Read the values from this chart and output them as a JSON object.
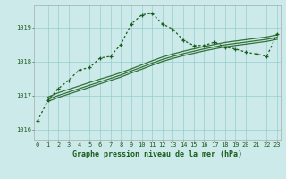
{
  "title": "Graphe pression niveau de la mer (hPa)",
  "background_color": "#cceaea",
  "grid_color": "#99cccc",
  "line_color": "#1a5c1a",
  "xlim": [
    -0.3,
    23.3
  ],
  "ylim": [
    1015.7,
    1019.65
  ],
  "yticks": [
    1016,
    1017,
    1018,
    1019
  ],
  "xticks": [
    0,
    1,
    2,
    3,
    4,
    5,
    6,
    7,
    8,
    9,
    10,
    11,
    12,
    13,
    14,
    15,
    16,
    17,
    18,
    19,
    20,
    21,
    22,
    23
  ],
  "main_line_x": [
    0,
    1,
    2,
    3,
    4,
    5,
    6,
    7,
    8,
    9,
    10,
    11,
    12,
    13,
    14,
    15,
    16,
    17,
    18,
    19,
    20,
    21,
    22,
    23
  ],
  "main_line_y": [
    1016.25,
    1016.85,
    1017.2,
    1017.45,
    1017.75,
    1017.82,
    1018.1,
    1018.15,
    1018.5,
    1019.1,
    1019.37,
    1019.42,
    1019.1,
    1018.95,
    1018.62,
    1018.47,
    1018.47,
    1018.57,
    1018.42,
    1018.37,
    1018.27,
    1018.22,
    1018.15,
    1018.82
  ],
  "line2_x": [
    1,
    2,
    3,
    4,
    5,
    6,
    7,
    8,
    9,
    10,
    11,
    12,
    13,
    14,
    15,
    16,
    17,
    18,
    19,
    20,
    21,
    22,
    23
  ],
  "line2_y": [
    1016.95,
    1017.08,
    1017.18,
    1017.28,
    1017.38,
    1017.48,
    1017.57,
    1017.67,
    1017.78,
    1017.9,
    1018.02,
    1018.13,
    1018.22,
    1018.3,
    1018.37,
    1018.44,
    1018.5,
    1018.56,
    1018.6,
    1018.64,
    1018.68,
    1018.72,
    1018.78
  ],
  "line3_x": [
    1,
    2,
    3,
    4,
    5,
    6,
    7,
    8,
    9,
    10,
    11,
    12,
    13,
    14,
    15,
    16,
    17,
    18,
    19,
    20,
    21,
    22,
    23
  ],
  "line3_y": [
    1016.88,
    1017.0,
    1017.1,
    1017.2,
    1017.3,
    1017.4,
    1017.5,
    1017.6,
    1017.72,
    1017.83,
    1017.95,
    1018.06,
    1018.15,
    1018.23,
    1018.3,
    1018.37,
    1018.43,
    1018.49,
    1018.53,
    1018.57,
    1018.61,
    1018.65,
    1018.71
  ],
  "line4_x": [
    1,
    2,
    3,
    4,
    5,
    6,
    7,
    8,
    9,
    10,
    11,
    12,
    13,
    14,
    15,
    16,
    17,
    18,
    19,
    20,
    21,
    22,
    23
  ],
  "line4_y": [
    1016.82,
    1016.94,
    1017.04,
    1017.14,
    1017.24,
    1017.34,
    1017.44,
    1017.54,
    1017.66,
    1017.77,
    1017.89,
    1018.0,
    1018.09,
    1018.17,
    1018.24,
    1018.31,
    1018.37,
    1018.43,
    1018.47,
    1018.51,
    1018.55,
    1018.59,
    1018.65
  ]
}
